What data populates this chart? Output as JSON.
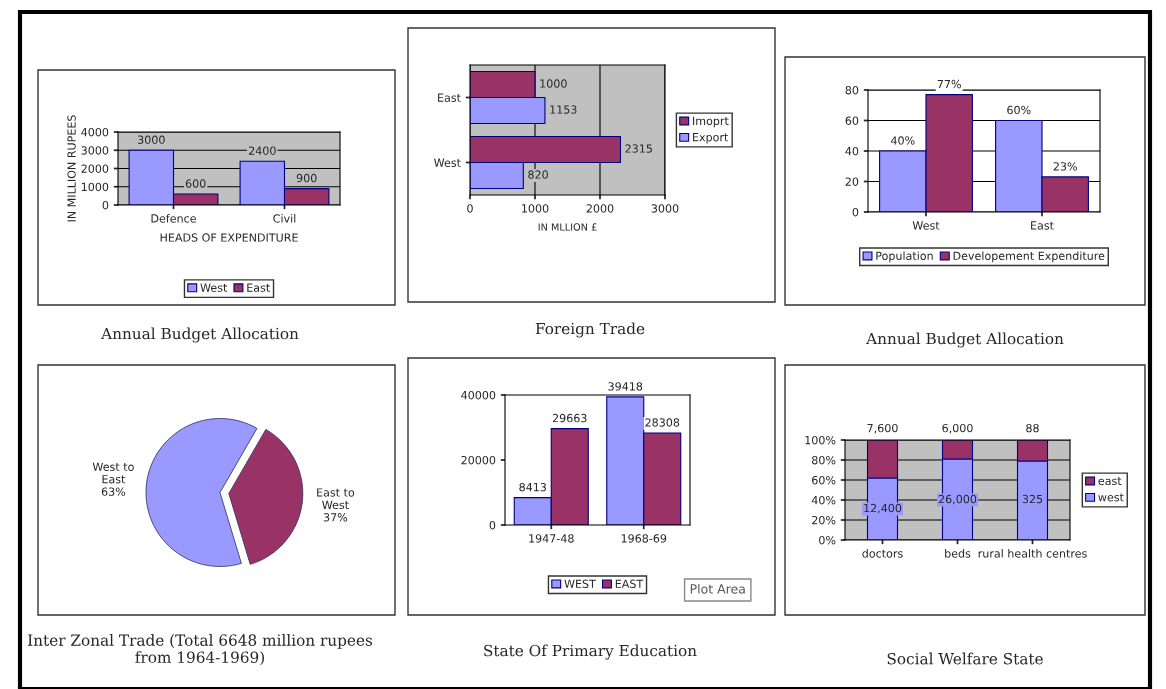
{
  "chart_data": [
    {
      "type": "bar",
      "title": "Annual Budget Allocation",
      "xlabel": "HEADS OF EXPENDITURE",
      "ylabel": "IN MILLION RUPEES",
      "categories": [
        "Defence",
        "Civil"
      ],
      "series": [
        {
          "name": "West",
          "color": "#9999ff",
          "values": [
            3000,
            2400
          ]
        },
        {
          "name": "East",
          "color": "#993366",
          "values": [
            600,
            900
          ]
        }
      ],
      "ylim": [
        0,
        4000
      ],
      "yticks": [
        0,
        1000,
        2000,
        3000,
        4000
      ],
      "grid": "y",
      "legend": "bottom",
      "data_labels": true
    },
    {
      "type": "bar",
      "orientation": "horizontal",
      "title": "Foreign Trade",
      "xlabel": "IN MLLION £",
      "categories": [
        "East",
        "West"
      ],
      "series": [
        {
          "name": "Imoprt",
          "color": "#993366",
          "values": [
            1000,
            2315
          ]
        },
        {
          "name": "Export",
          "color": "#9999ff",
          "values": [
            1153,
            820
          ]
        }
      ],
      "xlim": [
        0,
        3000
      ],
      "xticks": [
        0,
        1000,
        2000,
        3000
      ],
      "grid": "x",
      "legend": "right",
      "data_labels": true
    },
    {
      "type": "bar",
      "title": "Annual Budget Allocation",
      "categories": [
        "West",
        "East"
      ],
      "series": [
        {
          "name": "Population",
          "color": "#9999ff",
          "values": [
            40,
            60
          ],
          "value_labels": [
            "40%",
            "60%"
          ]
        },
        {
          "name": "Developement Expenditure",
          "color": "#993366",
          "values": [
            77,
            23
          ],
          "value_labels": [
            "77%",
            "23%"
          ]
        }
      ],
      "ylim": [
        0,
        80
      ],
      "yticks": [
        0,
        20,
        40,
        60,
        80
      ],
      "grid": "y",
      "legend": "bottom"
    },
    {
      "type": "pie",
      "title": "Inter Zonal Trade (Total 6648 million rupees from 1964-1969)",
      "categories": [
        "West to\nEast",
        "East to\nWest"
      ],
      "values": [
        63,
        37
      ],
      "value_labels": [
        "63%",
        "37%"
      ],
      "colors": [
        "#9999ff",
        "#993366"
      ]
    },
    {
      "type": "bar",
      "title": "State Of Primary Education",
      "categories": [
        "1947-48",
        "1968-69"
      ],
      "series": [
        {
          "name": "WEST",
          "color": "#9999ff",
          "values": [
            8413,
            39418
          ]
        },
        {
          "name": "EAST",
          "color": "#993366",
          "values": [
            29663,
            28308
          ]
        }
      ],
      "ylim": [
        0,
        40000
      ],
      "yticks": [
        0,
        20000,
        40000
      ],
      "legend": "bottom",
      "data_labels": true,
      "annotations": [
        "Plot Area"
      ]
    },
    {
      "type": "bar",
      "stacked": true,
      "title": "Social Welfare State",
      "categories": [
        "doctors",
        "beds",
        "rural health centres"
      ],
      "series": [
        {
          "name": "west",
          "color": "#9999ff",
          "values": [
            62,
            81,
            79
          ]
        },
        {
          "name": "east",
          "color": "#993366",
          "values": [
            38,
            19,
            21
          ]
        }
      ],
      "annotations": [
        {
          "text": "12,400",
          "x": "doctors",
          "y": 31
        },
        {
          "text": "26,000",
          "x": "beds",
          "y": 40
        },
        {
          "text": "325",
          "x": "rural health centres",
          "y": 40
        },
        {
          "text": "7,600",
          "x": "doctors",
          "y": 100
        },
        {
          "text": "6,000",
          "x": "beds",
          "y": 100
        },
        {
          "text": "88",
          "x": "rural health centres",
          "y": 100
        }
      ],
      "ylim": [
        0,
        100
      ],
      "yticks": [
        {
          "value": 0,
          "label": "0%"
        },
        {
          "value": 20,
          "label": "20%"
        },
        {
          "value": 40,
          "label": "40%"
        },
        {
          "value": 60,
          "label": "60%"
        },
        {
          "value": 80,
          "label": "80%"
        },
        {
          "value": 100,
          "label": "100%"
        }
      ],
      "grid": "y",
      "legend": "right"
    }
  ]
}
